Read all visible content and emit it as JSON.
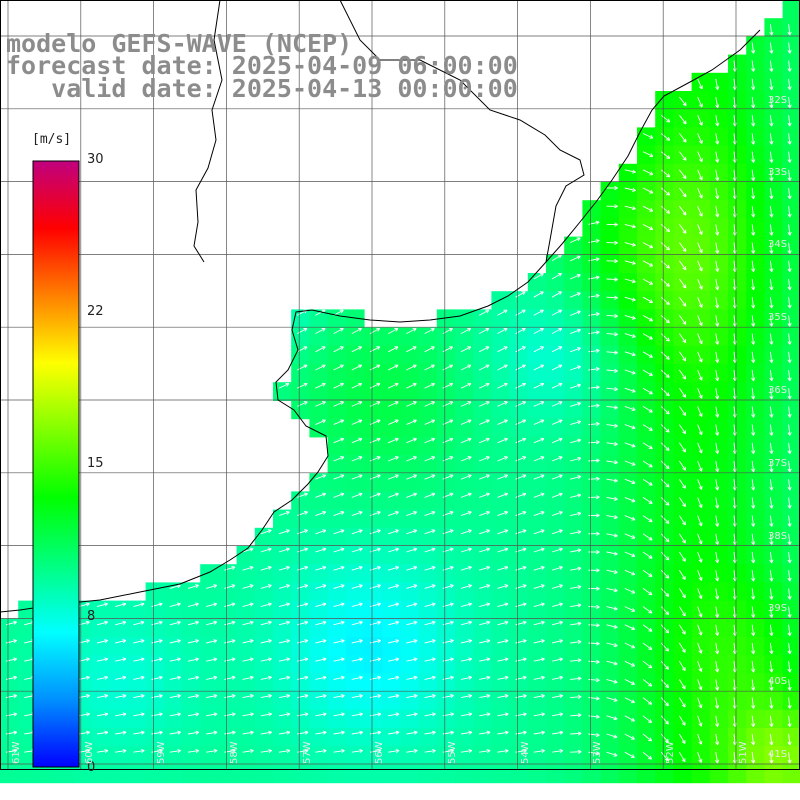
{
  "title": {
    "line1": "modelo GEFS-WAVE (NCEP)",
    "line2": "forecast date: 2025-04-09 06:00:00",
    "line3": "   valid date: 2025-04-13 00:00:00"
  },
  "colorbar": {
    "unit": "[m/s]",
    "ticks": [
      {
        "value": 30,
        "label": "30"
      },
      {
        "value": 22,
        "label": "22"
      },
      {
        "value": 15,
        "label": "15"
      },
      {
        "value": 8,
        "label": "8"
      },
      {
        "value": 0,
        "label": "0"
      }
    ],
    "min": 0,
    "max": 30,
    "gradient_stops": [
      "#0000ff",
      "#0090ff",
      "#00ffff",
      "#00ff80",
      "#00ff00",
      "#80ff00",
      "#ffff00",
      "#ff8000",
      "#ff0000",
      "#c0007f"
    ]
  },
  "lat_labels": [
    {
      "text": "32S",
      "lat": 32
    },
    {
      "text": "33S",
      "lat": 33
    },
    {
      "text": "34S",
      "lat": 34
    },
    {
      "text": "35S",
      "lat": 35
    },
    {
      "text": "36S",
      "lat": 36
    },
    {
      "text": "37S",
      "lat": 37
    },
    {
      "text": "38S",
      "lat": 38
    },
    {
      "text": "39S",
      "lat": 39
    },
    {
      "text": "40S",
      "lat": 40
    },
    {
      "text": "41S",
      "lat": 41
    }
  ],
  "lon_labels": [
    {
      "text": "61W",
      "lon": 61
    },
    {
      "text": "60W",
      "lon": 60
    },
    {
      "text": "59W",
      "lon": 59
    },
    {
      "text": "58W",
      "lon": 58
    },
    {
      "text": "57W",
      "lon": 57
    },
    {
      "text": "56W",
      "lon": 56
    },
    {
      "text": "55W",
      "lon": 55
    },
    {
      "text": "54W",
      "lon": 54
    },
    {
      "text": "53W",
      "lon": 53
    },
    {
      "text": "52W",
      "lon": 52
    },
    {
      "text": "51W",
      "lon": 51
    }
  ],
  "colors": {
    "coastline": "#000000",
    "grid": "#555555",
    "arrows": "#ffffff",
    "land": "#ffffff"
  }
}
